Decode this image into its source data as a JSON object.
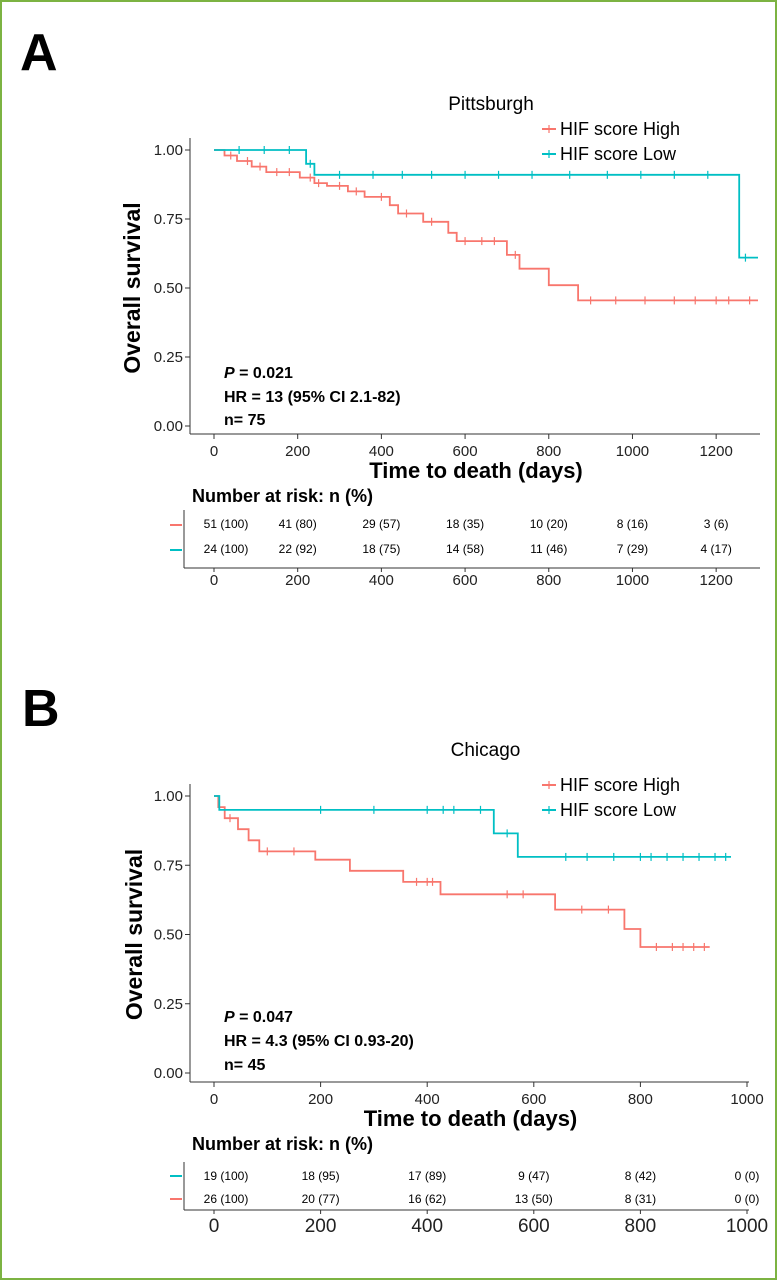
{
  "colors": {
    "high": "#f8766d",
    "low": "#00bfc4",
    "border": "#7cb342"
  },
  "panels": [
    {
      "letter": "A",
      "stats": {
        "p_label": "P",
        "p_value": " = 0.021",
        "hr": "HR = 13 (95% CI 2.1-82)",
        "n": "n= 75"
      },
      "risk": {
        "title": "Number at risk: n (%)",
        "rows": [
          {
            "series": "high",
            "cells": [
              "51 (100)",
              "41 (80)",
              "29 (57)",
              "18 (35)",
              "10 (20)",
              "8 (16)",
              "3 (6)"
            ]
          },
          {
            "series": "low",
            "cells": [
              "24 (100)",
              "22 (92)",
              "18 (75)",
              "14 (58)",
              "11 (46)",
              "7 (29)",
              "4 (17)"
            ]
          }
        ]
      }
    },
    {
      "letter": "B",
      "stats": {
        "p_label": "P",
        "p_value": " = 0.047",
        "hr": "HR = 4.3 (95% CI 0.93-20)",
        "n": "n= 45"
      },
      "risk": {
        "title": "Number at risk: n (%)",
        "rows": [
          {
            "series": "low",
            "cells": [
              "19 (100)",
              "18 (95)",
              "17 (89)",
              "9 (47)",
              "8 (42)",
              "0 (0)"
            ]
          },
          {
            "series": "high",
            "cells": [
              "26 (100)",
              "20 (77)",
              "16 (62)",
              "13 (50)",
              "8 (31)",
              "0 (0)"
            ]
          }
        ]
      }
    }
  ],
  "chart_data": [
    {
      "type": "line",
      "title": "Pittsburgh",
      "xlabel": "Time to death (days)",
      "ylabel": "Overall survival",
      "xlim": [
        0,
        1300
      ],
      "ylim": [
        0,
        1
      ],
      "xticks": [
        0,
        200,
        400,
        600,
        800,
        1000,
        1200
      ],
      "yticks": [
        "0.00",
        "0.25",
        "0.50",
        "0.75",
        "1.00"
      ],
      "legend_position": "top-right",
      "series": [
        {
          "name": "HIF score High",
          "steps": [
            [
              0,
              1.0
            ],
            [
              25,
              0.98
            ],
            [
              55,
              0.96
            ],
            [
              90,
              0.94
            ],
            [
              125,
              0.92
            ],
            [
              205,
              0.9
            ],
            [
              240,
              0.88
            ],
            [
              270,
              0.87
            ],
            [
              320,
              0.85
            ],
            [
              360,
              0.83
            ],
            [
              420,
              0.8
            ],
            [
              440,
              0.77
            ],
            [
              500,
              0.74
            ],
            [
              560,
              0.7
            ],
            [
              580,
              0.67
            ],
            [
              700,
              0.62
            ],
            [
              730,
              0.57
            ],
            [
              800,
              0.51
            ],
            [
              870,
              0.455
            ],
            [
              1300,
              0.455
            ]
          ],
          "censor": [
            40,
            80,
            110,
            150,
            180,
            230,
            250,
            300,
            340,
            400,
            460,
            520,
            600,
            640,
            670,
            720,
            900,
            960,
            1030,
            1100,
            1150,
            1200,
            1230,
            1280
          ]
        },
        {
          "name": "HIF score Low",
          "steps": [
            [
              0,
              1.0
            ],
            [
              220,
              0.95
            ],
            [
              240,
              0.91
            ],
            [
              1250,
              0.91
            ],
            [
              1255,
              0.61
            ],
            [
              1300,
              0.61
            ]
          ],
          "censor": [
            60,
            120,
            180,
            230,
            300,
            380,
            450,
            520,
            600,
            680,
            760,
            850,
            940,
            1020,
            1100,
            1180,
            1270
          ]
        }
      ]
    },
    {
      "type": "line",
      "title": "Chicago",
      "xlabel": "Time to death (days)",
      "ylabel": "Overall survival",
      "xlim": [
        0,
        1000
      ],
      "ylim": [
        0,
        1
      ],
      "xticks": [
        0,
        200,
        400,
        600,
        800,
        1000
      ],
      "yticks": [
        "0.00",
        "0.25",
        "0.50",
        "0.75",
        "1.00"
      ],
      "legend_position": "top-right",
      "series": [
        {
          "name": "HIF score High",
          "steps": [
            [
              0,
              1.0
            ],
            [
              8,
              0.96
            ],
            [
              20,
              0.92
            ],
            [
              45,
              0.88
            ],
            [
              65,
              0.84
            ],
            [
              85,
              0.8
            ],
            [
              190,
              0.77
            ],
            [
              255,
              0.73
            ],
            [
              355,
              0.69
            ],
            [
              425,
              0.645
            ],
            [
              640,
              0.59
            ],
            [
              770,
              0.52
            ],
            [
              800,
              0.455
            ],
            [
              930,
              0.455
            ]
          ],
          "censor": [
            30,
            100,
            150,
            380,
            400,
            410,
            550,
            580,
            690,
            740,
            830,
            860,
            880,
            900,
            920
          ]
        },
        {
          "name": "HIF score Low",
          "steps": [
            [
              0,
              1.0
            ],
            [
              10,
              0.95
            ],
            [
              520,
              0.95
            ],
            [
              525,
              0.865
            ],
            [
              565,
              0.865
            ],
            [
              570,
              0.78
            ],
            [
              970,
              0.78
            ]
          ],
          "censor": [
            200,
            300,
            400,
            430,
            450,
            500,
            550,
            660,
            700,
            750,
            800,
            820,
            850,
            880,
            910,
            940,
            960
          ]
        }
      ]
    }
  ]
}
